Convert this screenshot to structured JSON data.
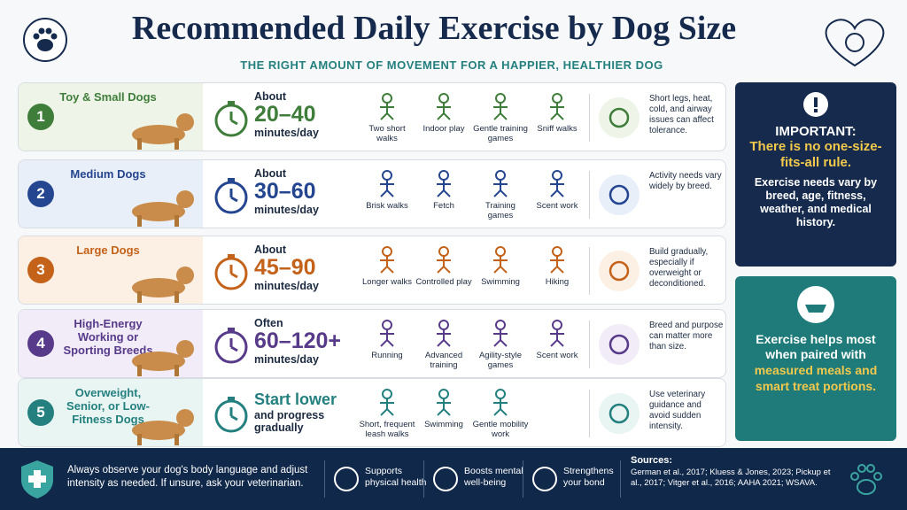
{
  "header": {
    "title": "Recommended Daily Exercise by Dog Size",
    "subtitle": "THE RIGHT AMOUNT OF MOVEMENT FOR A HAPPIER, HEALTHIER DOG"
  },
  "rows": [
    {
      "number": "1",
      "name": "Toy & Small Dogs",
      "time_lead": "About",
      "time_main": "20–40",
      "time_tail": "minutes/day",
      "activities": [
        "Two short walks",
        "Indoor play",
        "Gentle training games",
        "Sniff walks"
      ],
      "note": "Short legs, heat, cold, and airway issues can affect tolerance.",
      "color": "#3f7d3a",
      "tint": "#eef5e8"
    },
    {
      "number": "2",
      "name": "Medium Dogs",
      "time_lead": "About",
      "time_main": "30–60",
      "time_tail": "minutes/day",
      "activities": [
        "Brisk walks",
        "Fetch",
        "Training games",
        "Scent work"
      ],
      "note": "Activity needs vary widely by breed.",
      "color": "#24458f",
      "tint": "#e9eff9"
    },
    {
      "number": "3",
      "name": "Large Dogs",
      "time_lead": "About",
      "time_main": "45–90",
      "time_tail": "minutes/day",
      "activities": [
        "Longer walks",
        "Controlled play",
        "Swimming",
        "Hiking"
      ],
      "note": "Build gradually, especially if overweight or deconditioned.",
      "color": "#c4621a",
      "tint": "#fcf0e4"
    },
    {
      "number": "4",
      "name": "High-Energy Working or Sporting Breeds",
      "time_lead": "Often",
      "time_main": "60–120+",
      "time_tail": "minutes/day",
      "activities": [
        "Running",
        "Advanced training",
        "Agility-style games",
        "Scent work"
      ],
      "note": "Breed and purpose can matter more than size.",
      "color": "#573a8a",
      "tint": "#f1ecf7"
    },
    {
      "number": "5",
      "name": "Overweight, Senior, or Low-Fitness Dogs",
      "time_main": "Start lower",
      "time_tail": "and progress gradually",
      "activities": [
        "Short, frequent leash walks",
        "Swimming",
        "Gentle mobility work"
      ],
      "note": "Use veterinary guidance and avoid sudden intensity.",
      "color": "#23807f",
      "tint": "#e8f5f3"
    }
  ],
  "important": {
    "heading": "IMPORTANT:",
    "highlight": "There is no one-size-fits-all rule.",
    "body": "Exercise needs vary by breed, age, fitness, weather, and medical history."
  },
  "tip": {
    "lead": "Exercise helps most when paired with",
    "highlight": "measured meals and smart treat portions."
  },
  "footer": {
    "advice": "Always observe your dog's body language and adjust intensity as needed. If unsure, ask your veterinarian.",
    "benefits": [
      "Supports physical health",
      "Boosts mental well-being",
      "Strengthens your bond"
    ],
    "sources_title": "Sources:",
    "sources": "German et al., 2017; Kluess & Jones, 2023; Pickup et al., 2017; Vitger et al., 2016; AAHA 2021; WSAVA."
  }
}
